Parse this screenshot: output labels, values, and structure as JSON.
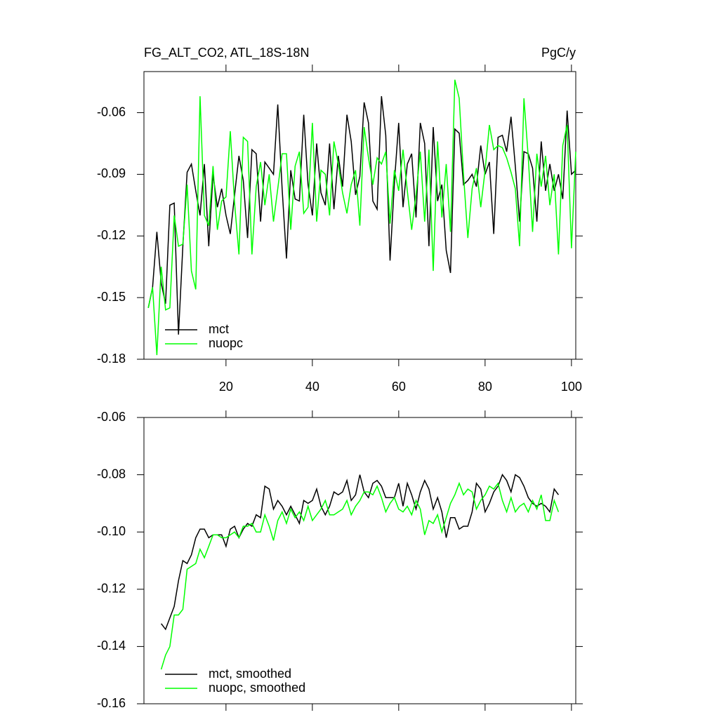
{
  "chart_data": [
    {
      "type": "line",
      "title": "FG_ALT_CO2, ATL_18S-18N",
      "units": "PgC/y",
      "x": [
        2,
        3,
        4,
        5,
        6,
        7,
        8,
        9,
        10,
        11,
        12,
        13,
        14,
        15,
        16,
        17,
        18,
        19,
        20,
        21,
        22,
        23,
        24,
        25,
        26,
        27,
        28,
        29,
        30,
        31,
        32,
        33,
        34,
        35,
        36,
        37,
        38,
        39,
        40,
        41,
        42,
        43,
        44,
        45,
        46,
        47,
        48,
        49,
        50,
        51,
        52,
        53,
        54,
        55,
        56,
        57,
        58,
        59,
        60,
        61,
        62,
        63,
        64,
        65,
        66,
        67,
        68,
        69,
        70,
        71,
        72,
        73,
        74,
        75,
        76,
        77,
        78,
        79,
        80,
        81,
        82,
        83,
        84,
        85,
        86,
        87,
        88,
        89,
        90,
        91,
        92,
        93,
        94,
        95,
        96,
        97,
        98,
        99,
        100,
        101
      ],
      "series": [
        {
          "name": "mct",
          "color": "#000000",
          "values": [
            -0.155,
            -0.145,
            -0.118,
            -0.143,
            -0.153,
            -0.105,
            -0.104,
            -0.168,
            -0.125,
            -0.089,
            -0.085,
            -0.098,
            -0.11,
            -0.085,
            -0.125,
            -0.09,
            -0.106,
            -0.097,
            -0.11,
            -0.119,
            -0.1,
            -0.081,
            -0.093,
            -0.121,
            -0.078,
            -0.08,
            -0.113,
            -0.084,
            -0.087,
            -0.09,
            -0.056,
            -0.097,
            -0.131,
            -0.088,
            -0.102,
            -0.103,
            -0.061,
            -0.095,
            -0.11,
            -0.075,
            -0.099,
            -0.105,
            -0.075,
            -0.107,
            -0.081,
            -0.096,
            -0.061,
            -0.074,
            -0.1,
            -0.091,
            -0.055,
            -0.065,
            -0.103,
            -0.107,
            -0.052,
            -0.071,
            -0.132,
            -0.094,
            -0.065,
            -0.106,
            -0.085,
            -0.08,
            -0.111,
            -0.065,
            -0.075,
            -0.125,
            -0.067,
            -0.103,
            -0.095,
            -0.127,
            -0.138,
            -0.068,
            -0.07,
            -0.095,
            -0.093,
            -0.09,
            -0.096,
            -0.076,
            -0.09,
            -0.084,
            -0.119,
            -0.072,
            -0.071,
            -0.079,
            -0.062,
            -0.086,
            -0.113,
            -0.079,
            -0.08,
            -0.087,
            -0.113,
            -0.074,
            -0.098,
            -0.085,
            -0.098,
            -0.09,
            -0.102,
            -0.059,
            -0.09,
            -0.088
          ]
        },
        {
          "name": "nuopc",
          "color": "#00ff00",
          "values": [
            -0.155,
            -0.145,
            -0.178,
            -0.135,
            -0.156,
            -0.155,
            -0.11,
            -0.125,
            -0.124,
            -0.095,
            -0.137,
            -0.146,
            -0.052,
            -0.11,
            -0.115,
            -0.086,
            -0.117,
            -0.103,
            -0.101,
            -0.069,
            -0.104,
            -0.129,
            -0.072,
            -0.074,
            -0.129,
            -0.096,
            -0.084,
            -0.105,
            -0.09,
            -0.113,
            -0.097,
            -0.08,
            -0.08,
            -0.117,
            -0.086,
            -0.079,
            -0.109,
            -0.106,
            -0.065,
            -0.113,
            -0.088,
            -0.09,
            -0.11,
            -0.074,
            -0.085,
            -0.099,
            -0.109,
            -0.095,
            -0.088,
            -0.115,
            -0.067,
            -0.082,
            -0.095,
            -0.082,
            -0.085,
            -0.079,
            -0.114,
            -0.088,
            -0.098,
            -0.078,
            -0.098,
            -0.117,
            -0.1,
            -0.079,
            -0.113,
            -0.078,
            -0.137,
            -0.074,
            -0.111,
            -0.085,
            -0.118,
            -0.044,
            -0.053,
            -0.09,
            -0.121,
            -0.097,
            -0.087,
            -0.106,
            -0.088,
            -0.066,
            -0.078,
            -0.076,
            -0.077,
            -0.082,
            -0.089,
            -0.097,
            -0.125,
            -0.053,
            -0.082,
            -0.118,
            -0.08,
            -0.096,
            -0.081,
            -0.105,
            -0.09,
            -0.129,
            -0.076,
            -0.066,
            -0.126,
            -0.079
          ]
        }
      ],
      "xlim": [
        1,
        101
      ],
      "xticks": [
        20,
        40,
        60,
        80,
        100
      ],
      "xtick_labels": true,
      "ylim": [
        -0.18,
        -0.04
      ],
      "yticks": [
        -0.18,
        -0.15,
        -0.12,
        -0.09,
        -0.06
      ],
      "legend": "lower left"
    },
    {
      "type": "line",
      "x": [
        5,
        6,
        7,
        8,
        9,
        10,
        11,
        12,
        13,
        14,
        15,
        16,
        17,
        18,
        19,
        20,
        21,
        22,
        23,
        24,
        25,
        26,
        27,
        28,
        29,
        30,
        31,
        32,
        33,
        34,
        35,
        36,
        37,
        38,
        39,
        40,
        41,
        42,
        43,
        44,
        45,
        46,
        47,
        48,
        49,
        50,
        51,
        52,
        53,
        54,
        55,
        56,
        57,
        58,
        59,
        60,
        61,
        62,
        63,
        64,
        65,
        66,
        67,
        68,
        69,
        70,
        71,
        72,
        73,
        74,
        75,
        76,
        77,
        78,
        79,
        80,
        81,
        82,
        83,
        84,
        85,
        86,
        87,
        88,
        89,
        90,
        91,
        92,
        93,
        94,
        95,
        96,
        97
      ],
      "series": [
        {
          "name": "mct, smoothed",
          "color": "#000000",
          "values": [
            -0.132,
            -0.134,
            -0.13,
            -0.126,
            -0.117,
            -0.11,
            -0.111,
            -0.108,
            -0.102,
            -0.099,
            -0.099,
            -0.102,
            -0.101,
            -0.101,
            -0.101,
            -0.105,
            -0.099,
            -0.098,
            -0.102,
            -0.099,
            -0.097,
            -0.098,
            -0.094,
            -0.095,
            -0.084,
            -0.085,
            -0.092,
            -0.089,
            -0.091,
            -0.094,
            -0.091,
            -0.094,
            -0.097,
            -0.089,
            -0.09,
            -0.089,
            -0.085,
            -0.091,
            -0.094,
            -0.091,
            -0.086,
            -0.087,
            -0.086,
            -0.082,
            -0.089,
            -0.087,
            -0.08,
            -0.086,
            -0.088,
            -0.083,
            -0.082,
            -0.084,
            -0.088,
            -0.088,
            -0.088,
            -0.083,
            -0.091,
            -0.083,
            -0.087,
            -0.092,
            -0.086,
            -0.082,
            -0.085,
            -0.092,
            -0.088,
            -0.093,
            -0.102,
            -0.095,
            -0.095,
            -0.099,
            -0.098,
            -0.098,
            -0.093,
            -0.083,
            -0.085,
            -0.093,
            -0.09,
            -0.086,
            -0.084,
            -0.08,
            -0.082,
            -0.086,
            -0.08,
            -0.081,
            -0.084,
            -0.088,
            -0.09,
            -0.091,
            -0.09,
            -0.091,
            -0.093,
            -0.085,
            -0.087
          ]
        },
        {
          "name": "nuopc, smoothed",
          "color": "#00ff00",
          "values": [
            -0.148,
            -0.143,
            -0.14,
            -0.129,
            -0.129,
            -0.127,
            -0.113,
            -0.112,
            -0.111,
            -0.106,
            -0.109,
            -0.105,
            -0.101,
            -0.101,
            -0.102,
            -0.102,
            -0.101,
            -0.1,
            -0.102,
            -0.098,
            -0.098,
            -0.097,
            -0.1,
            -0.1,
            -0.094,
            -0.098,
            -0.103,
            -0.096,
            -0.093,
            -0.097,
            -0.092,
            -0.095,
            -0.093,
            -0.096,
            -0.091,
            -0.096,
            -0.094,
            -0.092,
            -0.089,
            -0.094,
            -0.094,
            -0.093,
            -0.092,
            -0.089,
            -0.094,
            -0.091,
            -0.089,
            -0.086,
            -0.086,
            -0.087,
            -0.084,
            -0.088,
            -0.093,
            -0.09,
            -0.088,
            -0.092,
            -0.093,
            -0.091,
            -0.094,
            -0.089,
            -0.092,
            -0.101,
            -0.096,
            -0.097,
            -0.094,
            -0.1,
            -0.095,
            -0.09,
            -0.087,
            -0.083,
            -0.087,
            -0.085,
            -0.086,
            -0.092,
            -0.089,
            -0.087,
            -0.084,
            -0.085,
            -0.083,
            -0.089,
            -0.093,
            -0.088,
            -0.093,
            -0.091,
            -0.09,
            -0.093,
            -0.089,
            -0.092,
            -0.087,
            -0.096,
            -0.096,
            -0.089,
            -0.093
          ]
        }
      ],
      "xlim": [
        1,
        101
      ],
      "xticks": [
        20,
        40,
        60,
        80,
        100
      ],
      "xtick_labels": false,
      "ylim": [
        -0.16,
        -0.06
      ],
      "yticks": [
        -0.16,
        -0.14,
        -0.12,
        {
          "value": -0.1,
          "label": "-0.10"
        },
        -0.08,
        -0.06
      ],
      "legend": "lower left"
    }
  ]
}
